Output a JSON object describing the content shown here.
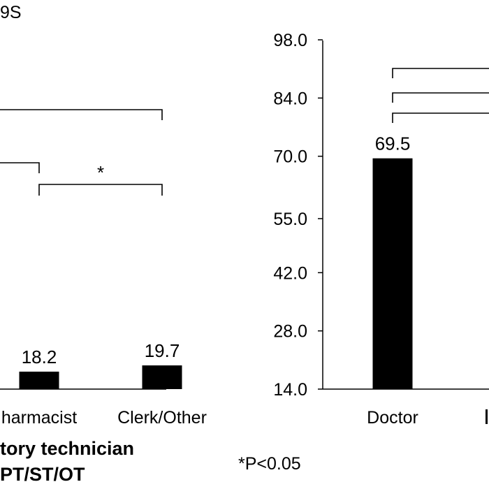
{
  "top_fragment": "9S",
  "footnote": "*P<0.05",
  "legend_fragments": [
    "tory technician",
    "PT/ST/OT"
  ],
  "chart_data": [
    {
      "type": "bar",
      "categories": [
        "harmacist",
        "Clerk/Other"
      ],
      "values": [
        18.2,
        19.7
      ],
      "data_labels": [
        "18.2",
        "19.7"
      ],
      "significance": [
        {
          "label": "",
          "note": "bracket from left edge to Clerk/Other"
        },
        {
          "label": "",
          "note": "bracket from left edge to harmacist"
        },
        {
          "label": "*",
          "note": "harmacist vs Clerk/Other"
        }
      ],
      "color": "#000000"
    },
    {
      "type": "bar",
      "categories": [
        "Doctor"
      ],
      "values": [
        69.5
      ],
      "data_labels": [
        "69.5"
      ],
      "yticks": [
        "98.0",
        "84.0",
        "70.0",
        "55.0",
        "42.0",
        "28.0",
        "14.0"
      ],
      "ylim": [
        14,
        98
      ],
      "color": "#000000"
    }
  ]
}
